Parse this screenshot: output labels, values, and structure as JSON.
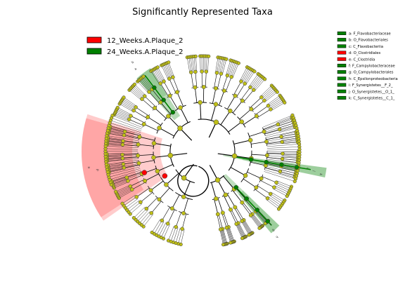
{
  "title": "Significantly Represented Taxa",
  "legend": [
    {
      "label": "12_Weeks.A.Plaque_2",
      "color": "#ff0000"
    },
    {
      "label": "24_Weeks.A.Plaque_2",
      "color": "#008000"
    }
  ],
  "key": [
    {
      "text": "a: F_Flavobacteriaceae",
      "color": "#008000"
    },
    {
      "text": "b: O_Flavobacteriales",
      "color": "#008000"
    },
    {
      "text": "c: C_Flavobacteriia",
      "color": "#008000"
    },
    {
      "text": "d: O_Clostridiales",
      "color": "#ff0000"
    },
    {
      "text": "e: C_Clostridia",
      "color": "#ff0000"
    },
    {
      "text": "f: F_Campylobacteraceae",
      "color": "#008000"
    },
    {
      "text": "g: O_Campylobacterales",
      "color": "#008000"
    },
    {
      "text": "h: C_Epsilonproteobacteria",
      "color": "#008000"
    },
    {
      "text": "i: F_Synergistetes__F_2_",
      "color": "#008000"
    },
    {
      "text": "j: O_Synergistetes__O_1_",
      "color": "#008000"
    },
    {
      "text": "k: C_Synergistetes__C_1_",
      "color": "#008000"
    }
  ],
  "clade_labels": {
    "flavo": [
      "a",
      "b"
    ],
    "synerg": [
      "i",
      "j",
      "k"
    ],
    "campy": [
      "f",
      "g",
      "h"
    ],
    "clost": [
      "d",
      "e"
    ]
  },
  "colors": {
    "node_default": "#bfbf18",
    "enriched_red": "#ff0000",
    "enriched_green": "#008000",
    "shade_red": "#ff8080",
    "shade_green": "#5fae5f"
  }
}
